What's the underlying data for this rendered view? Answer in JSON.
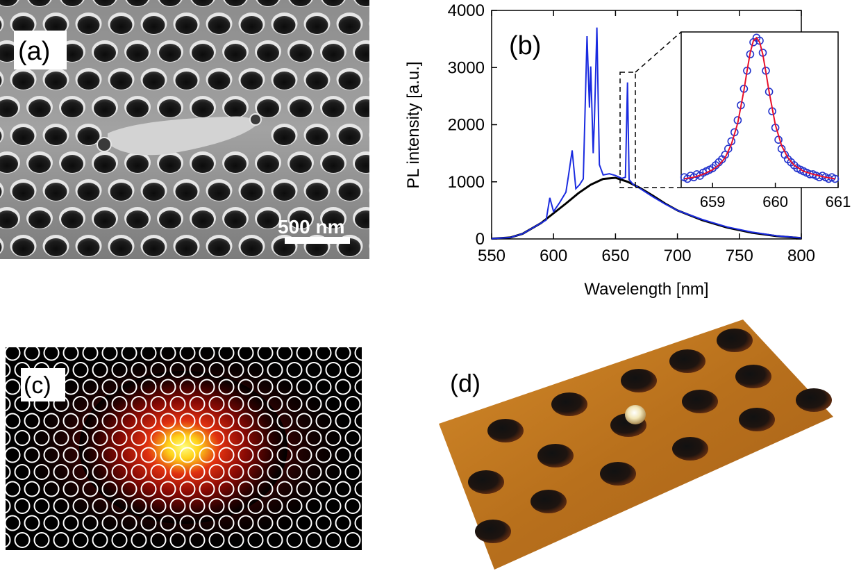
{
  "panels": {
    "a": {
      "label": "(a)",
      "scalebar": "500 nm"
    },
    "b": {
      "label": "(b)"
    },
    "c": {
      "label": "(c)"
    },
    "d": {
      "label": "(d)"
    }
  },
  "colors": {
    "pl_with_cavity": "#1a2be0",
    "pl_background": "#000000",
    "inset_data": "#2233cc",
    "inset_fit": "#e8102a"
  },
  "chart_data": [
    {
      "type": "line",
      "xlabel": "Wavelength [nm]",
      "ylabel": "PL intensity [a.u.]",
      "xlim": [
        550,
        800
      ],
      "ylim": [
        0,
        4000
      ],
      "xticks": [
        550,
        600,
        650,
        700,
        750,
        800
      ],
      "yticks": [
        0,
        1000,
        2000,
        3000,
        4000
      ],
      "series": [
        {
          "x": [
            550,
            565,
            575,
            590,
            600,
            610,
            620,
            630,
            640,
            650,
            660,
            670,
            680,
            690,
            700,
            720,
            740,
            760,
            780,
            800
          ],
          "y": [
            5,
            25,
            90,
            280,
            450,
            620,
            800,
            950,
            1050,
            1070,
            1000,
            890,
            760,
            620,
            500,
            330,
            200,
            110,
            50,
            15
          ]
        },
        {
          "x": [
            550,
            565,
            575,
            590,
            594,
            597,
            600,
            605,
            610,
            612,
            615,
            618,
            621,
            624,
            627,
            629,
            630,
            632,
            633,
            635,
            637,
            640,
            645,
            650,
            655,
            658,
            659.7,
            661,
            664,
            670,
            680,
            690,
            700,
            720,
            740,
            760,
            780,
            800
          ],
          "y": [
            5,
            25,
            90,
            280,
            330,
            720,
            480,
            640,
            820,
            1100,
            1550,
            880,
            950,
            1050,
            3550,
            2300,
            3020,
            1500,
            2100,
            3700,
            1300,
            1120,
            1140,
            1110,
            1060,
            1080,
            2740,
            1040,
            960,
            880,
            740,
            610,
            500,
            340,
            210,
            120,
            55,
            18
          ]
        }
      ]
    },
    {
      "type": "scatter",
      "xlim": [
        658.5,
        661
      ],
      "ylim": [
        0,
        1
      ],
      "xticks": [
        659,
        660,
        661
      ],
      "series": [
        {
          "x": [
            658.55,
            658.6,
            658.65,
            658.7,
            658.75,
            658.8,
            658.85,
            658.9,
            658.95,
            659.0,
            659.05,
            659.1,
            659.15,
            659.2,
            659.25,
            659.3,
            659.35,
            659.4,
            659.45,
            659.5,
            659.55,
            659.6,
            659.65,
            659.7,
            659.75,
            659.8,
            659.85,
            659.9,
            659.95,
            660.0,
            660.05,
            660.1,
            660.15,
            660.2,
            660.25,
            660.3,
            660.35,
            660.4,
            660.45,
            660.5,
            660.55,
            660.6,
            660.65,
            660.7,
            660.75,
            660.8,
            660.85,
            660.9,
            660.95
          ],
          "y": [
            0.05,
            0.04,
            0.06,
            0.05,
            0.07,
            0.06,
            0.08,
            0.09,
            0.1,
            0.11,
            0.13,
            0.15,
            0.17,
            0.2,
            0.24,
            0.29,
            0.35,
            0.43,
            0.53,
            0.64,
            0.76,
            0.87,
            0.95,
            0.98,
            0.96,
            0.88,
            0.76,
            0.62,
            0.49,
            0.38,
            0.3,
            0.24,
            0.2,
            0.17,
            0.15,
            0.13,
            0.11,
            0.1,
            0.09,
            0.08,
            0.07,
            0.07,
            0.06,
            0.05,
            0.06,
            0.05,
            0.04,
            0.05,
            0.04
          ]
        },
        {
          "x": [
            658.55,
            658.7,
            658.85,
            659.0,
            659.1,
            659.2,
            659.3,
            659.4,
            659.5,
            659.55,
            659.6,
            659.65,
            659.7,
            659.75,
            659.8,
            659.85,
            659.9,
            660.0,
            660.1,
            660.2,
            660.3,
            660.45,
            660.6,
            660.8,
            660.95
          ],
          "y": [
            0.04,
            0.05,
            0.07,
            0.1,
            0.13,
            0.18,
            0.27,
            0.41,
            0.63,
            0.76,
            0.88,
            0.96,
            0.98,
            0.95,
            0.87,
            0.75,
            0.62,
            0.4,
            0.26,
            0.18,
            0.13,
            0.09,
            0.07,
            0.05,
            0.04
          ]
        }
      ]
    }
  ]
}
